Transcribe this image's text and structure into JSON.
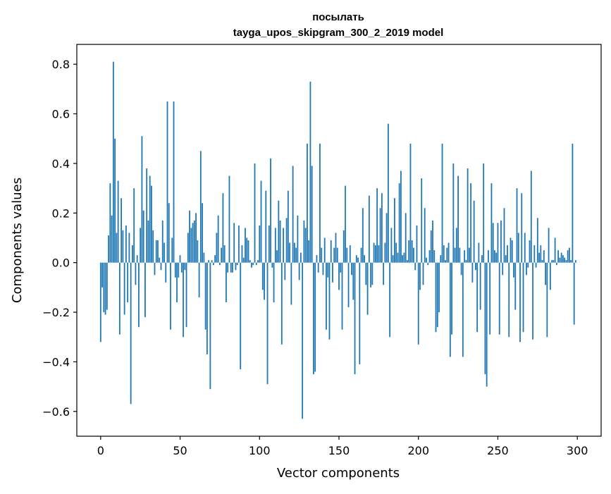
{
  "chart_data": {
    "type": "bar",
    "title_line1": "посылать",
    "title_line2": "tayga_upos_skipgram_300_2_2019 model",
    "xlabel": "Vector components",
    "ylabel": "Components values",
    "xlim": [
      -15,
      315
    ],
    "ylim": [
      -0.7,
      0.88
    ],
    "x_ticks": [
      0,
      50,
      100,
      150,
      200,
      250,
      300
    ],
    "x_tick_labels": [
      "0",
      "50",
      "100",
      "150",
      "200",
      "250",
      "300"
    ],
    "y_ticks": [
      -0.6,
      -0.4,
      -0.2,
      0.0,
      0.2,
      0.4,
      0.6,
      0.8
    ],
    "y_tick_labels": [
      "−0.6",
      "−0.4",
      "−0.2",
      "0.0",
      "0.2",
      "0.4",
      "0.6",
      "0.8"
    ],
    "bar_color": "#1f77b4",
    "values": [
      -0.32,
      -0.1,
      -0.2,
      -0.21,
      -0.19,
      0.11,
      0.32,
      0.19,
      0.81,
      0.5,
      0.12,
      0.33,
      -0.29,
      0.26,
      0.13,
      -0.21,
      0.15,
      -0.16,
      0.12,
      -0.57,
      0.07,
      0.3,
      -0.09,
      0.03,
      -0.26,
      0.14,
      0.51,
      0.21,
      -0.22,
      0.38,
      0.17,
      0.35,
      0.31,
      0.13,
      -0.05,
      0.09,
      0.09,
      0.02,
      -0.03,
      0.17,
      0.08,
      -0.08,
      0.65,
      0.24,
      -0.27,
      0.1,
      0.65,
      -0.06,
      -0.16,
      -0.06,
      0.03,
      -0.04,
      -0.3,
      -0.03,
      -0.26,
      0.12,
      0.21,
      0.14,
      0.16,
      0.17,
      0.2,
      0.09,
      -0.14,
      0.45,
      0.24,
      0.04,
      -0.27,
      -0.37,
      0.01,
      -0.51,
      0.01,
      -0.01,
      0.03,
      0.12,
      0.19,
      -0.01,
      0.06,
      0.28,
      0.07,
      -0.16,
      -0.04,
      0.35,
      -0.04,
      -0.04,
      0.16,
      -0.03,
      -0.01,
      0.15,
      -0.43,
      0.07,
      0.02,
      0.14,
      0.1,
      0.09,
      0.01,
      -0.02,
      -0.01,
      0.4,
      -0.01,
      0.01,
      0.15,
      0.33,
      -0.11,
      -0.15,
      0.29,
      -0.49,
      0.15,
      0.42,
      -0.02,
      -0.16,
      0.14,
      0.05,
      0.25,
      0.17,
      -0.33,
      0.14,
      -0.07,
      0.18,
      0.29,
      0.08,
      -0.17,
      0.39,
      0.08,
      0.06,
      0.19,
      -0.07,
      0.04,
      -0.63,
      0.17,
      0.14,
      0.48,
      0.09,
      0.73,
      0.39,
      -0.45,
      -0.44,
      0.03,
      -0.04,
      0.48,
      0.06,
      -0.05,
      0.1,
      -0.27,
      -0.06,
      -0.31,
      0.09,
      -0.08,
      0.06,
      0.12,
      0.06,
      -0.11,
      -0.04,
      -0.27,
      0.13,
      0.31,
      0.06,
      -0.18,
      0.07,
      -0.05,
      -0.15,
      -0.45,
      0.03,
      0.02,
      -0.41,
      0.06,
      0.22,
      0.03,
      -0.09,
      -0.21,
      0.27,
      -0.1,
      -0.09,
      0.08,
      0.07,
      0.3,
      0.07,
      0.22,
      0.28,
      -0.09,
      0.08,
      0.2,
      0.56,
      -0.3,
      0.14,
      0.03,
      0.26,
      0.08,
      0.04,
      0.32,
      0.37,
      0.03,
      0.04,
      0.2,
      0.01,
      0.09,
      0.48,
      0.09,
      0.06,
      -0.03,
      0.15,
      -0.33,
      -0.11,
      0.34,
      -0.09,
      0.22,
      0.02,
      -0.01,
      0.05,
      0.13,
      0.17,
      0.05,
      -0.28,
      -0.26,
      -0.2,
      0.03,
      0.48,
      0.07,
      0.01,
      0.06,
      0.08,
      -0.38,
      -0.29,
      0.4,
      0.06,
      0.14,
      0.35,
      0.06,
      -0.05,
      -0.38,
      0.05,
      0.01,
      0.38,
      0.06,
      0.32,
      -0.08,
      0.25,
      -0.03,
      -0.28,
      0.08,
      -0.19,
      0.03,
      0.4,
      -0.45,
      -0.5,
      0.05,
      -0.29,
      0.32,
      0.16,
      0.05,
      0.04,
      0.16,
      -0.29,
      0.17,
      -0.05,
      0.22,
      0.03,
      0.07,
      -0.3,
      0.1,
      0.09,
      -0.06,
      -0.19,
      0.3,
      0.12,
      -0.32,
      0.28,
      -0.28,
      0.12,
      -0.05,
      -0.02,
      0.09,
      0.37,
      -0.31,
      0.07,
      -0.02,
      0.18,
      0.04,
      0.07,
      0.01,
      0.05,
      -0.09,
      -0.3,
      0.14,
      -0.11,
      0.01,
      0.01,
      0.1,
      -0.01,
      0.05,
      0.02,
      0.04,
      0.03,
      0.02,
      0.01,
      0.05,
      0.06,
      0.01,
      0.48,
      -0.25,
      0.01
    ]
  }
}
